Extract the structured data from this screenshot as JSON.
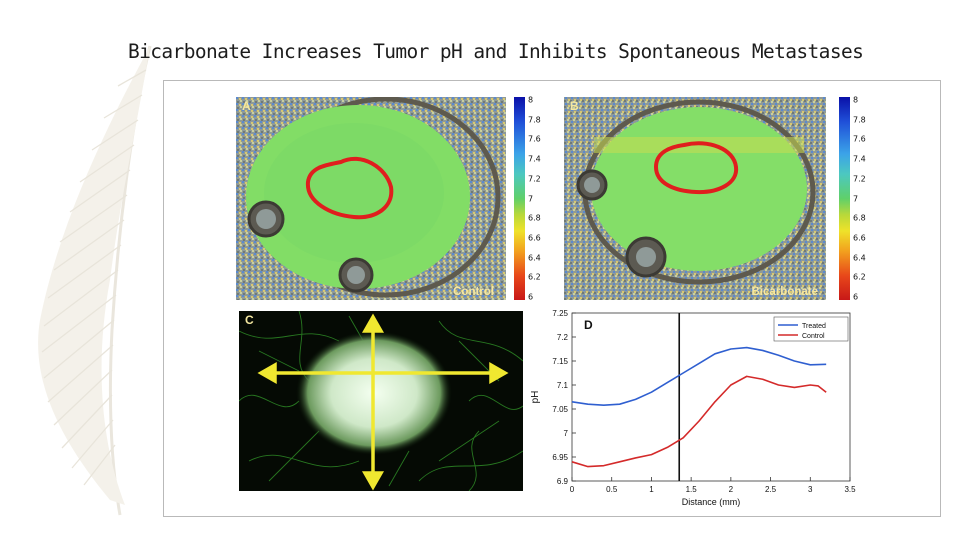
{
  "slide": {
    "title": "Bicarbonate Increases Tumor pH and Inhibits Spontaneous Metastases"
  },
  "panels": {
    "a": {
      "letter": "A",
      "caption": "Control"
    },
    "b": {
      "letter": "B",
      "caption": "Bicarbonate"
    },
    "c": {
      "letter": "C"
    }
  },
  "colorbar": {
    "ticks": [
      "8",
      "7.8",
      "7.6",
      "7.4",
      "7.2",
      "7",
      "6.8",
      "6.6",
      "6.4",
      "6.2",
      "6"
    ],
    "min": 6,
    "max": 8
  },
  "colors": {
    "treated": "#2f5fd0",
    "control": "#d42a2a",
    "boundary": "#e01e1e",
    "arrow": "#f0e830"
  },
  "chart_data": {
    "type": "line",
    "panel_letter": "D",
    "xlabel": "Distance (mm)",
    "ylabel": "pH",
    "xlim": [
      0,
      3.5
    ],
    "ylim": [
      6.9,
      7.25
    ],
    "xticks": [
      "0",
      "0.5",
      "1",
      "1.5",
      "2",
      "2.5",
      "3",
      "3.5"
    ],
    "yticks": [
      "6.9",
      "6.95",
      "7",
      "7.05",
      "7.1",
      "7.15",
      "7.2",
      "7.25"
    ],
    "vline_x": 1.35,
    "legend_position": "top-right",
    "series": [
      {
        "name": "Treated",
        "x": [
          0,
          0.2,
          0.4,
          0.6,
          0.8,
          1.0,
          1.2,
          1.4,
          1.6,
          1.8,
          2.0,
          2.2,
          2.4,
          2.6,
          2.8,
          3.0,
          3.2
        ],
        "y": [
          7.065,
          7.06,
          7.058,
          7.06,
          7.07,
          7.085,
          7.105,
          7.125,
          7.145,
          7.165,
          7.175,
          7.178,
          7.172,
          7.162,
          7.15,
          7.142,
          7.143
        ]
      },
      {
        "name": "Control",
        "x": [
          0,
          0.2,
          0.4,
          0.6,
          0.8,
          1.0,
          1.2,
          1.4,
          1.6,
          1.8,
          2.0,
          2.2,
          2.4,
          2.6,
          2.8,
          3.0,
          3.1,
          3.2
        ],
        "y": [
          6.94,
          6.93,
          6.932,
          6.94,
          6.948,
          6.955,
          6.97,
          6.99,
          7.025,
          7.065,
          7.1,
          7.118,
          7.112,
          7.1,
          7.095,
          7.1,
          7.098,
          7.085
        ]
      }
    ]
  }
}
